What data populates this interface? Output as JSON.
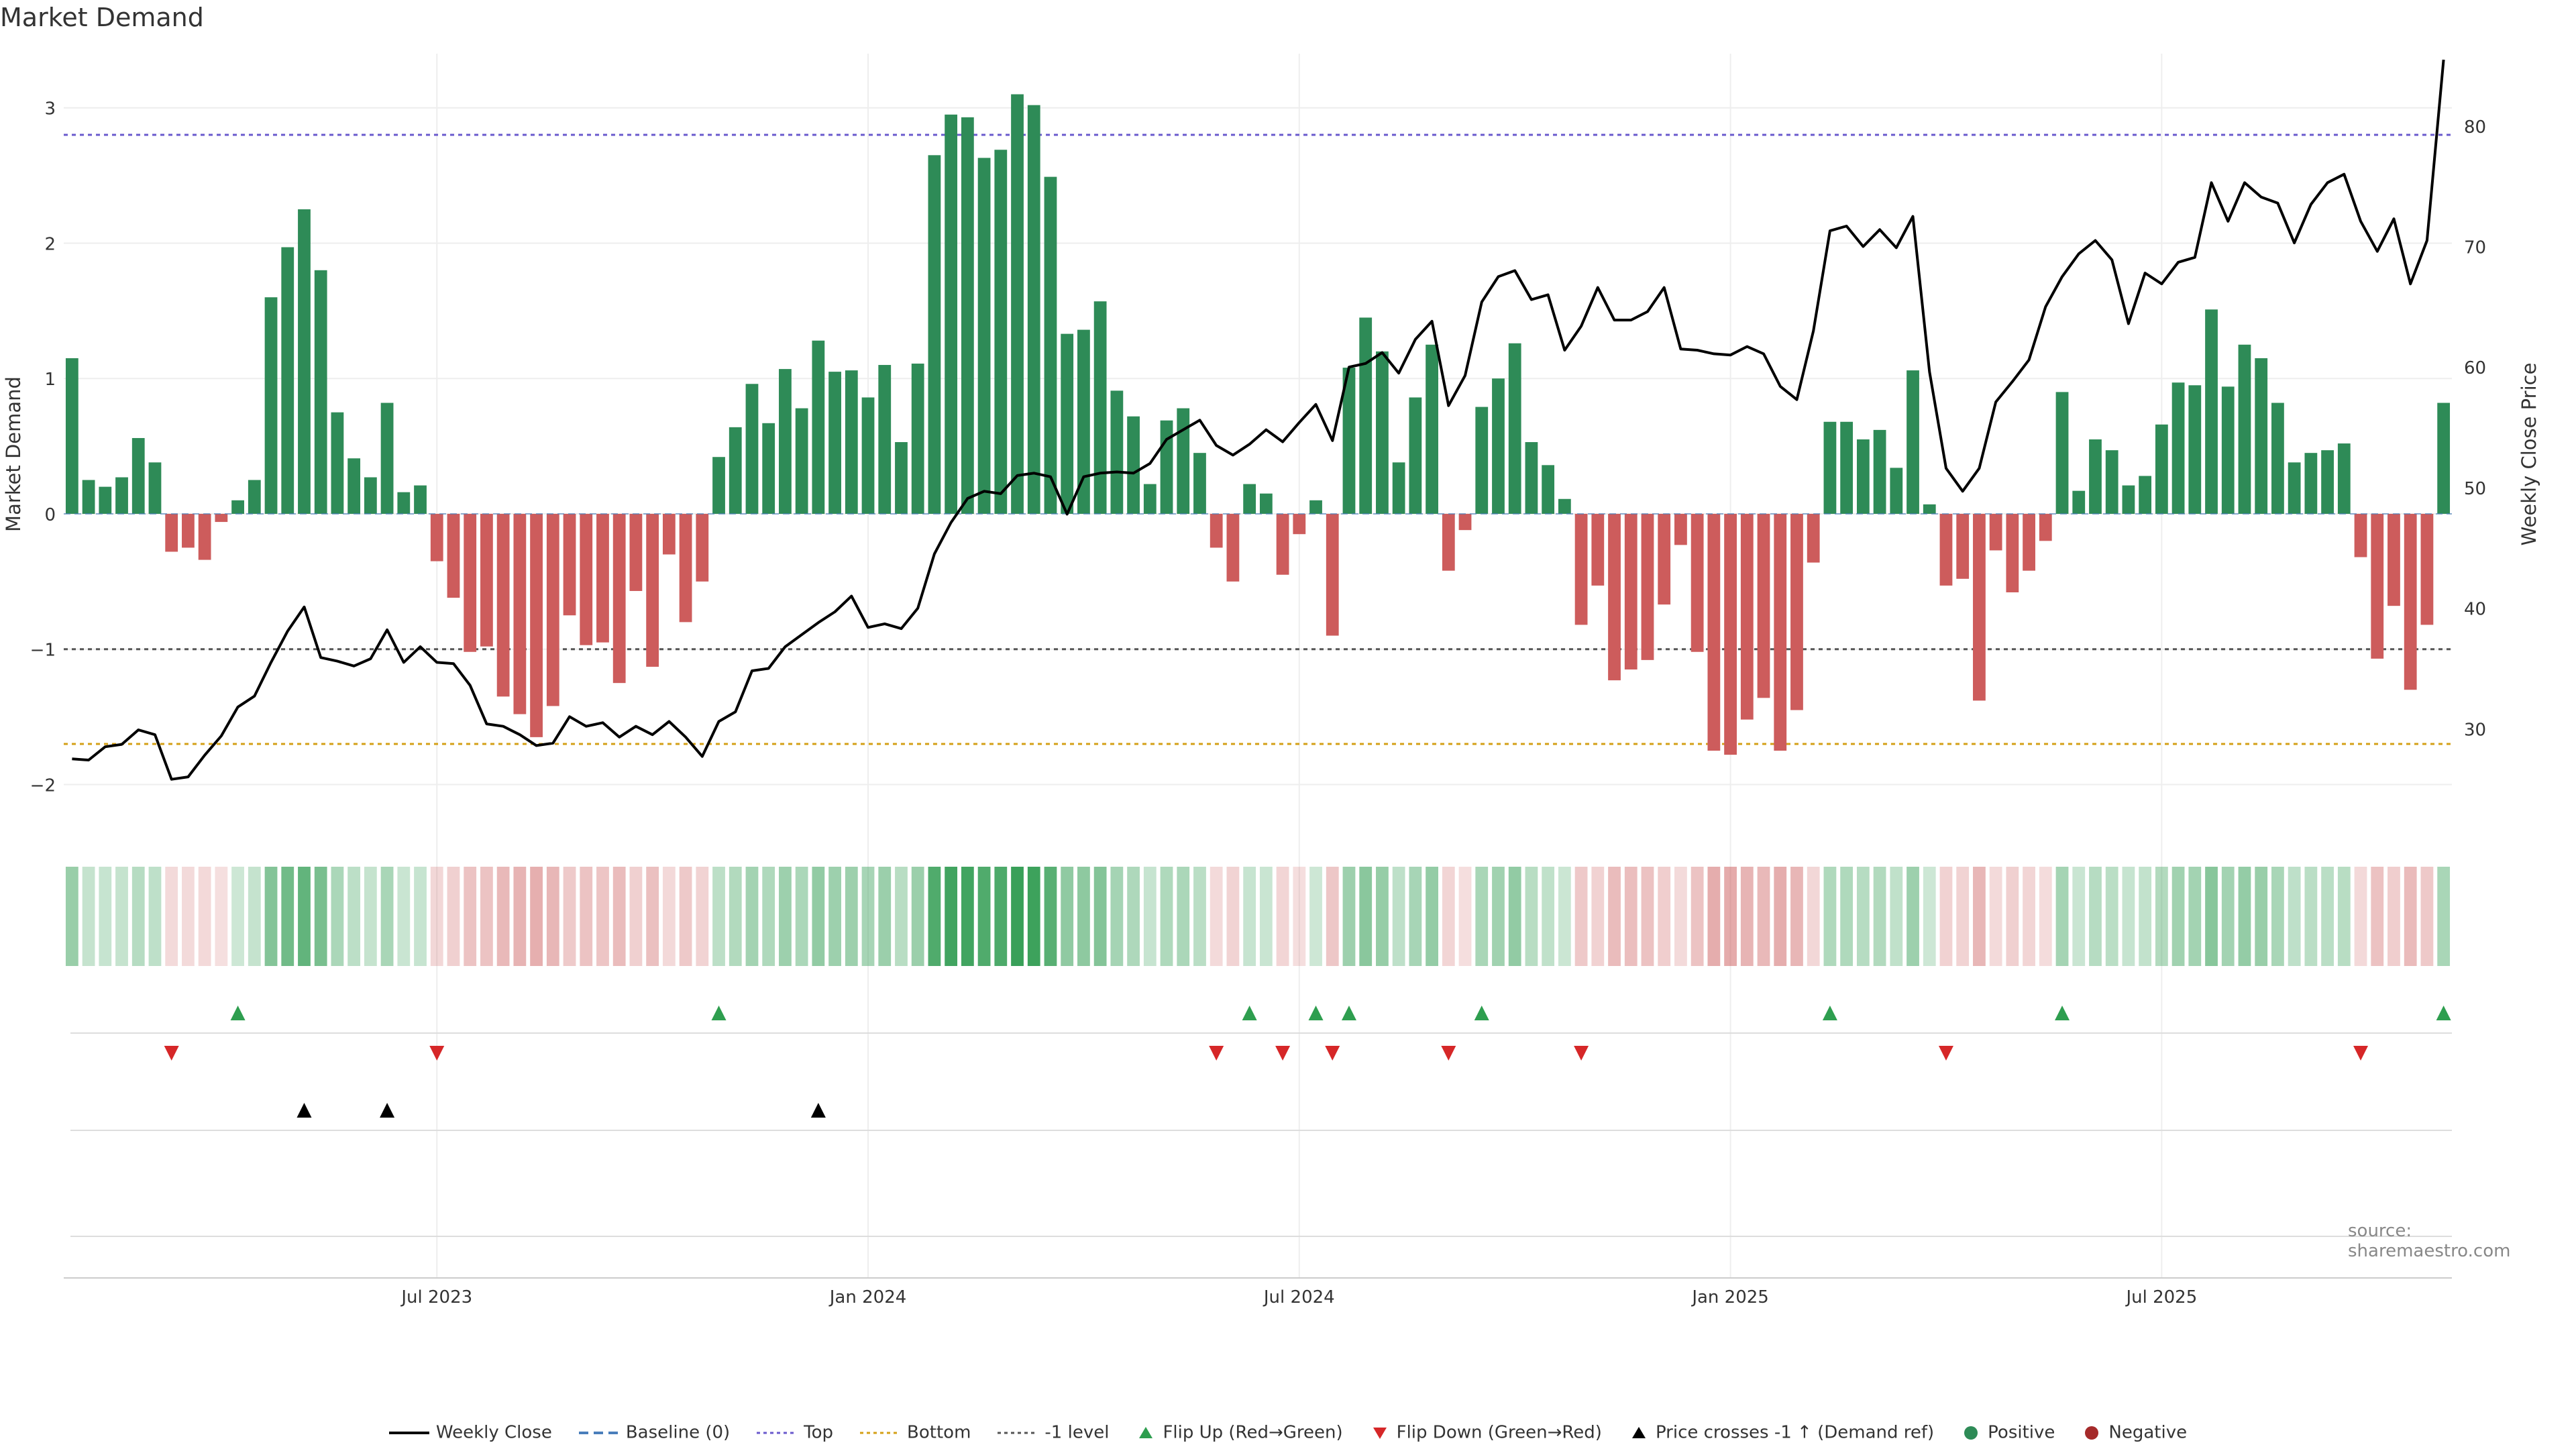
{
  "chart_data": {
    "type": "bar",
    "title": "Market Demand",
    "ylabel": "Market Demand",
    "y2label": "Weekly Close Price",
    "ylim": [
      -2.3,
      3.4
    ],
    "y2lim": [
      22,
      86
    ],
    "yticks": [
      -2,
      -1,
      0,
      1,
      2,
      3
    ],
    "y2ticks": [
      30,
      40,
      50,
      60,
      70,
      80
    ],
    "xtick_labels": [
      "Jul 2023",
      "Jan 2024",
      "Jul 2024",
      "Jan 2025",
      "Jul 2025"
    ],
    "reference_lines": {
      "top": 2.8,
      "bottom": -1.7,
      "minus_one": -1
    },
    "demand": [
      1.15,
      0.25,
      0.2,
      0.27,
      0.56,
      0.38,
      -0.28,
      -0.25,
      -0.34,
      -0.06,
      0.1,
      0.25,
      1.6,
      1.97,
      2.25,
      1.8,
      0.75,
      0.41,
      0.27,
      0.82,
      0.16,
      0.21,
      -0.35,
      -0.62,
      -1.02,
      -0.98,
      -1.35,
      -1.48,
      -1.65,
      -1.42,
      -0.75,
      -0.97,
      -0.95,
      -1.25,
      -0.57,
      -1.13,
      -0.3,
      -0.8,
      -0.5,
      0.42,
      0.64,
      0.96,
      0.67,
      1.07,
      0.78,
      1.28,
      1.05,
      1.06,
      0.86,
      1.1,
      0.53,
      1.11,
      2.65,
      2.95,
      2.93,
      2.63,
      2.69,
      3.1,
      3.02,
      2.49,
      1.33,
      1.36,
      1.57,
      0.91,
      0.72,
      0.22,
      0.69,
      0.78,
      0.45,
      -0.25,
      -0.5,
      0.22,
      0.15,
      -0.45,
      -0.15,
      0.1,
      -0.9,
      1.08,
      1.45,
      1.2,
      0.38,
      0.86,
      1.25,
      -0.42,
      -0.12,
      0.79,
      1.0,
      1.26,
      0.53,
      0.36,
      0.11,
      -0.82,
      -0.53,
      -1.23,
      -1.15,
      -1.08,
      -0.67,
      -0.23,
      -1.02,
      -1.75,
      -1.78,
      -1.52,
      -1.36,
      -1.75,
      -1.45,
      -0.36,
      0.68,
      0.68,
      0.55,
      0.62,
      0.34,
      1.06,
      0.07,
      -0.53,
      -0.48,
      -1.38,
      -0.27,
      -0.58,
      -0.42,
      -0.2,
      0.9,
      0.17,
      0.55,
      0.47,
      0.21,
      0.28,
      0.66,
      0.97,
      0.95,
      1.51,
      0.94,
      1.25,
      1.15,
      0.82,
      0.38,
      0.45,
      0.47,
      0.52,
      -0.32,
      -1.07,
      -0.68,
      -1.3,
      -0.82,
      0.82
    ],
    "price": [
      27.5,
      27.4,
      28.5,
      28.7,
      29.9,
      29.5,
      25.8,
      26.0,
      27.8,
      29.4,
      31.8,
      32.7,
      35.5,
      38.1,
      40.1,
      35.9,
      35.6,
      35.2,
      35.8,
      38.2,
      35.5,
      36.8,
      35.5,
      35.4,
      33.6,
      30.4,
      30.2,
      29.5,
      28.6,
      28.8,
      31.0,
      30.2,
      30.5,
      29.3,
      30.2,
      29.5,
      30.6,
      29.3,
      27.7,
      30.6,
      31.4,
      34.8,
      35.0,
      36.8,
      37.8,
      38.8,
      39.7,
      41.0,
      38.4,
      38.7,
      38.3,
      40.0,
      44.5,
      47.1,
      49.1,
      49.7,
      49.5,
      51.0,
      51.2,
      50.9,
      47.8,
      50.9,
      51.2,
      51.3,
      51.2,
      52.0,
      54.0,
      54.8,
      55.6,
      53.5,
      52.7,
      53.6,
      54.8,
      53.8,
      55.4,
      56.9,
      53.9,
      60.0,
      60.3,
      61.2,
      59.5,
      62.3,
      63.8,
      56.8,
      59.3,
      65.4,
      67.5,
      68.0,
      65.6,
      66.0,
      61.4,
      63.4,
      66.6,
      63.9,
      63.9,
      64.6,
      66.6,
      61.5,
      61.4,
      61.1,
      61.0,
      61.7,
      61.1,
      58.4,
      57.3,
      63.0,
      71.3,
      71.7,
      70.0,
      71.4,
      69.9,
      72.5,
      59.6,
      51.6,
      49.7,
      51.6,
      57.1,
      58.8,
      60.6,
      65.0,
      67.5,
      69.4,
      70.5,
      68.9,
      63.6,
      67.8,
      66.9,
      68.7,
      69.1,
      75.3,
      72.1,
      75.3,
      74.1,
      73.6,
      70.3,
      73.5,
      75.3,
      76.0,
      72.1,
      69.6,
      72.3,
      66.9,
      70.5,
      85.5
    ],
    "x_ticks_at_week": [
      22,
      48,
      74,
      100,
      126
    ],
    "flip_up_weeks": [
      10,
      39,
      71,
      75,
      77,
      85,
      106,
      120,
      143
    ],
    "flip_down_weeks": [
      6,
      22,
      69,
      73,
      76,
      83,
      91,
      113,
      138
    ],
    "cross_weeks": [
      14,
      19,
      45
    ],
    "colors": {
      "positive": "#2e8b57",
      "negative": "#cd5c5c",
      "price": "#000000",
      "top": "#6a5acd",
      "bottom": "#d4a017",
      "minus_one": "#555555",
      "flip_up": "#2e9e4f",
      "flip_down": "#d62728",
      "cross": "#000000"
    },
    "legend": [
      {
        "label": "Weekly Close",
        "kind": "line",
        "color": "#000000"
      },
      {
        "label": "Baseline (0)",
        "kind": "dashed",
        "color": "#4a7ebb"
      },
      {
        "label": "Top",
        "kind": "dotted",
        "color": "#6a5acd"
      },
      {
        "label": "Bottom",
        "kind": "dotted",
        "color": "#d4a017"
      },
      {
        "label": "-1 level",
        "kind": "dotted",
        "color": "#555555"
      },
      {
        "label": "Flip Up (Red→Green)",
        "kind": "tri-up",
        "color": "#2e9e4f"
      },
      {
        "label": "Flip Down (Green→Red)",
        "kind": "tri-down",
        "color": "#d62728"
      },
      {
        "label": "Price crosses -1 ↑ (Demand ref)",
        "kind": "tri-up",
        "color": "#000000"
      },
      {
        "label": "Positive",
        "kind": "dot",
        "color": "#2e8b57"
      },
      {
        "label": "Negative",
        "kind": "dot",
        "color": "#a52a2a"
      }
    ]
  },
  "source": "source: sharemaestro.com"
}
